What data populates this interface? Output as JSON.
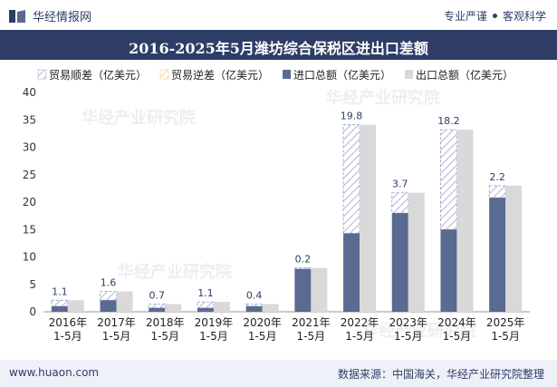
{
  "header": {
    "brand_name": "华经情报网",
    "motto_left": "专业严谨",
    "motto_right": "客观科学"
  },
  "footer": {
    "website": "www.huaon.com",
    "source": "数据来源：中国海关，华经产业研究院整理"
  },
  "watermark": "华经产业研究院",
  "colors": {
    "brand": "#2e3d66",
    "import": "#5a6a91",
    "export": "#d9d9d9",
    "surplus_hatch": "#b9c3d6",
    "deficit_hatch": "#f2e1a0"
  },
  "chart_data": {
    "type": "bar",
    "title": "2016-2025年5月潍坊综合保税区进出口差额",
    "legend": [
      "贸易顺差（亿美元）",
      "贸易逆差（亿美元）",
      "进口总额（亿美元）",
      "出口总额（亿美元）"
    ],
    "categories": [
      [
        "2016年",
        "1-5月"
      ],
      [
        "2017年",
        "1-5月"
      ],
      [
        "2018年",
        "1-5月"
      ],
      [
        "2019年",
        "1-5月"
      ],
      [
        "2020年",
        "1-5月"
      ],
      [
        "2021年",
        "1-5月"
      ],
      [
        "2022年",
        "1-5月"
      ],
      [
        "2023年",
        "1-5月"
      ],
      [
        "2024年",
        "1-5月"
      ],
      [
        "2025年",
        "1-5月"
      ]
    ],
    "import": [
      1.0,
      2.1,
      0.7,
      0.7,
      1.0,
      7.8,
      14.3,
      18.0,
      15.0,
      20.8
    ],
    "export": [
      2.1,
      3.7,
      1.4,
      1.8,
      1.4,
      8.0,
      34.1,
      21.7,
      33.2,
      23.0
    ],
    "balance": [
      1.1,
      1.6,
      0.7,
      1.1,
      0.4,
      0.2,
      19.8,
      3.7,
      18.2,
      2.2
    ],
    "balance_labels": [
      "1.1",
      "1.6",
      "0.7",
      "1.1",
      "0.4",
      "0.2",
      "19.8",
      "3.7",
      "18.2",
      "2.2"
    ],
    "y_ticks": [
      "0",
      "5",
      "10",
      "15",
      "20",
      "25",
      "30",
      "35",
      "40"
    ],
    "ylim": [
      0,
      40
    ]
  }
}
